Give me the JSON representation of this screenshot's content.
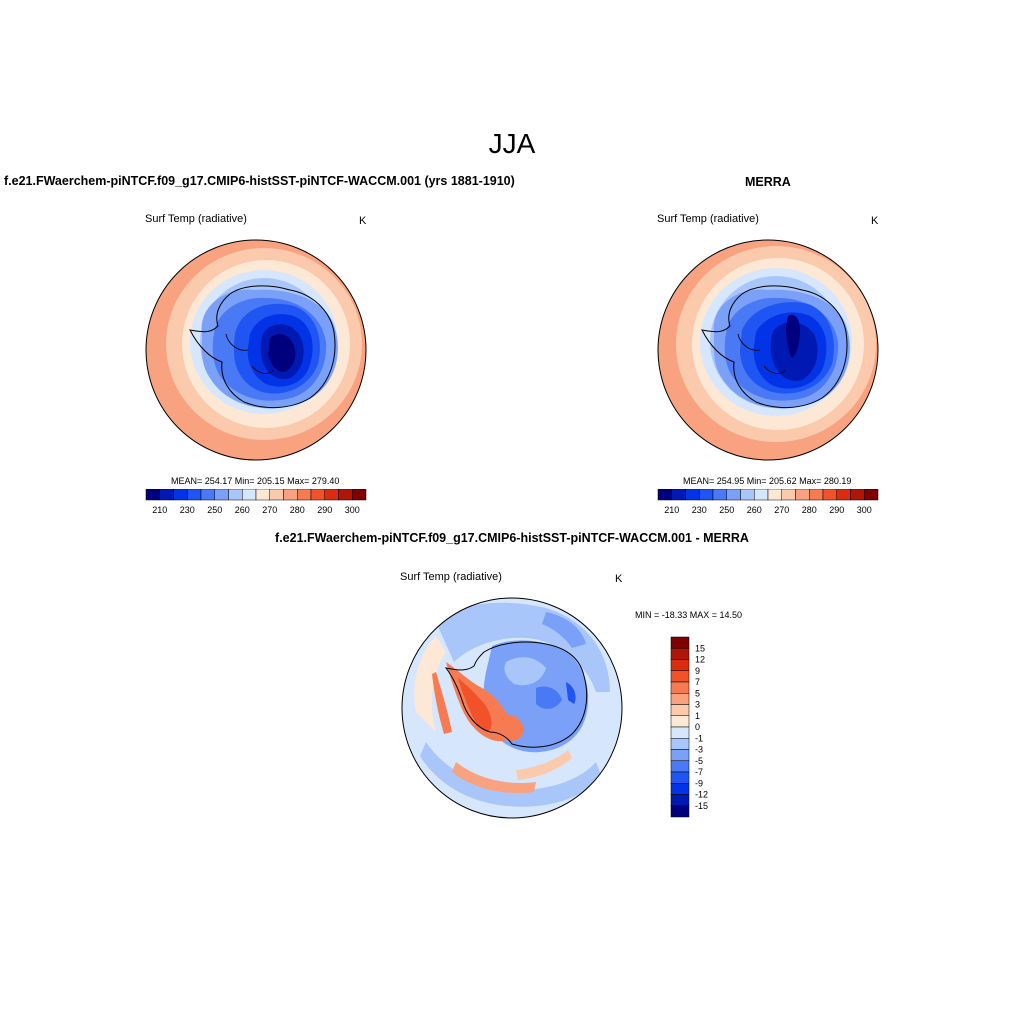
{
  "title": "JJA",
  "panels": [
    {
      "title": "f.e21.FWaerchem-piNTCF.f09_g17.CMIP6-histSST-piNTCF-WACCM.001 (yrs 1881-1910)",
      "var_label": "Surf Temp (radiative)",
      "units": "K",
      "stats": "MEAN= 254.17  Min= 205.15  Max= 279.40",
      "stats_values": {
        "mean": 254.17,
        "min": 205.15,
        "max": 279.4
      }
    },
    {
      "title": "MERRA",
      "var_label": "Surf Temp (radiative)",
      "units": "K",
      "stats": "MEAN= 254.95  Min= 205.62  Max= 280.19",
      "stats_values": {
        "mean": 254.95,
        "min": 205.62,
        "max": 280.19
      }
    },
    {
      "title": "f.e21.FWaerchem-piNTCF.f09_g17.CMIP6-histSST-piNTCF-WACCM.001 - MERRA",
      "var_label": "Surf Temp (radiative)",
      "units": "K",
      "stats": "MIN = -18.33 MAX =  14.50",
      "stats_values": {
        "min": -18.33,
        "max": 14.5
      }
    }
  ],
  "colorbar_abs": {
    "tick_labels": [
      "210",
      "230",
      "250",
      "260",
      "270",
      "280",
      "290",
      "300"
    ],
    "colors": [
      "#00007f",
      "#0019b3",
      "#0333e6",
      "#1f55f2",
      "#4a79f5",
      "#7aa1f7",
      "#a9c6fa",
      "#d6e6fc",
      "#fde8d6",
      "#fbc9ab",
      "#f9a27f",
      "#f67b52",
      "#f1522a",
      "#dc2c10",
      "#b01607",
      "#7f0000"
    ]
  },
  "colorbar_diff": {
    "tick_labels": [
      "15",
      "12",
      "9",
      "7",
      "5",
      "3",
      "1",
      "0",
      "-1",
      "-3",
      "-5",
      "-7",
      "-9",
      "-12",
      "-15"
    ],
    "colors": [
      "#7f0000",
      "#b01607",
      "#dc2c10",
      "#f1522a",
      "#f67b52",
      "#f9a27f",
      "#fbc9ab",
      "#fde8d6",
      "#d6e6fc",
      "#a9c6fa",
      "#7aa1f7",
      "#4a79f5",
      "#1f55f2",
      "#0333e6",
      "#0019b3",
      "#00007f"
    ]
  }
}
